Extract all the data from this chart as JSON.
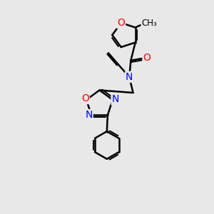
{
  "bg_color": "#e8e8e8",
  "bond_color": "#000000",
  "bond_width": 1.8,
  "atom_colors": {
    "O": "#ff0000",
    "N": "#0000ff",
    "C": "#000000"
  },
  "font_size_atom": 10,
  "font_size_small": 8.5,
  "xlim": [
    0,
    10
  ],
  "ylim": [
    0,
    14
  ]
}
